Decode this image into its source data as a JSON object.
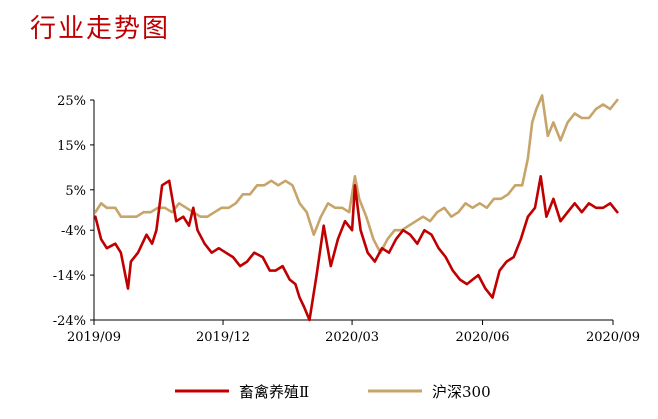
{
  "chart_data": {
    "type": "line",
    "title": "行业走势图",
    "ylim": [
      -24,
      25
    ],
    "y_ticks": [
      "25%",
      "15%",
      "5%",
      "-4%",
      "-14%",
      "-24%"
    ],
    "x_ticks": [
      "2019/09",
      "2019/12",
      "2020/03",
      "2020/06",
      "2020/09"
    ],
    "legend_position": "bottom",
    "series": [
      {
        "name": "畜禽养殖Ⅱ",
        "color": "#c00000",
        "x": [
          "2019-09-02",
          "2019-09-06",
          "2019-09-10",
          "2019-09-16",
          "2019-09-20",
          "2019-09-25",
          "2019-09-27",
          "2019-10-02",
          "2019-10-08",
          "2019-10-12",
          "2019-10-15",
          "2019-10-19",
          "2019-10-24",
          "2019-10-29",
          "2019-11-03",
          "2019-11-07",
          "2019-11-10",
          "2019-11-13",
          "2019-11-18",
          "2019-11-23",
          "2019-11-28",
          "2019-12-03",
          "2019-12-08",
          "2019-12-13",
          "2019-12-18",
          "2019-12-23",
          "2019-12-29",
          "2020-01-03",
          "2020-01-07",
          "2020-01-12",
          "2020-01-17",
          "2020-01-21",
          "2020-01-24",
          "2020-01-27",
          "2020-01-31",
          "2020-02-05",
          "2020-02-10",
          "2020-02-15",
          "2020-02-20",
          "2020-02-25",
          "2020-03-01",
          "2020-03-03",
          "2020-03-07",
          "2020-03-12",
          "2020-03-17",
          "2020-03-22",
          "2020-03-27",
          "2020-04-01",
          "2020-04-06",
          "2020-04-11",
          "2020-04-16",
          "2020-04-21",
          "2020-04-26",
          "2020-05-01",
          "2020-05-06",
          "2020-05-11",
          "2020-05-16",
          "2020-05-21",
          "2020-05-25",
          "2020-05-29",
          "2020-06-03",
          "2020-06-08",
          "2020-06-13",
          "2020-06-18",
          "2020-06-23",
          "2020-06-28",
          "2020-07-03",
          "2020-07-08",
          "2020-07-12",
          "2020-07-16",
          "2020-07-21",
          "2020-07-26",
          "2020-07-31",
          "2020-08-05",
          "2020-08-10",
          "2020-08-15",
          "2020-08-20",
          "2020-08-25",
          "2020-08-30",
          "2020-09-04"
        ],
        "values": [
          -1,
          -6,
          -8,
          -7,
          -9,
          -17,
          -11,
          -9,
          -5,
          -7,
          -4,
          6,
          7,
          -2,
          -1,
          -3,
          1,
          -4,
          -7,
          -9,
          -8,
          -9,
          -10,
          -12,
          -11,
          -9,
          -10,
          -13,
          -13,
          -12,
          -15,
          -16,
          -19,
          -21,
          -24,
          -14,
          -3,
          -12,
          -6,
          -2,
          -4,
          6,
          -4,
          -9,
          -11,
          -8,
          -9,
          -6,
          -4,
          -5,
          -7,
          -4,
          -5,
          -8,
          -10,
          -13,
          -15,
          -16,
          -15,
          -14,
          -17,
          -19,
          -13,
          -11,
          -10,
          -6,
          -1,
          1,
          8,
          -1,
          3,
          -2,
          0,
          2,
          0,
          2,
          1,
          1,
          2,
          0
        ]
      },
      {
        "name": "沪深300",
        "color": "#c6a46a",
        "x": [
          "2019-09-02",
          "2019-09-06",
          "2019-09-10",
          "2019-09-16",
          "2019-09-20",
          "2019-09-25",
          "2019-10-01",
          "2019-10-06",
          "2019-10-11",
          "2019-10-16",
          "2019-10-21",
          "2019-10-26",
          "2019-10-31",
          "2019-11-05",
          "2019-11-10",
          "2019-11-15",
          "2019-11-20",
          "2019-11-25",
          "2019-11-30",
          "2019-12-05",
          "2019-12-10",
          "2019-12-15",
          "2019-12-20",
          "2019-12-25",
          "2019-12-30",
          "2020-01-04",
          "2020-01-09",
          "2020-01-14",
          "2020-01-19",
          "2020-01-24",
          "2020-01-29",
          "2020-02-03",
          "2020-02-08",
          "2020-02-13",
          "2020-02-18",
          "2020-02-23",
          "2020-02-28",
          "2020-03-03",
          "2020-03-06",
          "2020-03-11",
          "2020-03-16",
          "2020-03-21",
          "2020-03-26",
          "2020-03-31",
          "2020-04-05",
          "2020-04-10",
          "2020-04-15",
          "2020-04-20",
          "2020-04-25",
          "2020-04-30",
          "2020-05-05",
          "2020-05-10",
          "2020-05-15",
          "2020-05-20",
          "2020-05-25",
          "2020-05-30",
          "2020-06-04",
          "2020-06-09",
          "2020-06-14",
          "2020-06-19",
          "2020-06-24",
          "2020-06-29",
          "2020-07-03",
          "2020-07-06",
          "2020-07-09",
          "2020-07-13",
          "2020-07-17",
          "2020-07-21",
          "2020-07-26",
          "2020-07-31",
          "2020-08-05",
          "2020-08-10",
          "2020-08-15",
          "2020-08-20",
          "2020-08-25",
          "2020-08-30",
          "2020-09-04"
        ],
        "values": [
          0,
          2,
          1,
          1,
          -1,
          -1,
          -1,
          0,
          0,
          1,
          1,
          0,
          2,
          1,
          0,
          -1,
          -1,
          0,
          1,
          1,
          2,
          4,
          4,
          6,
          6,
          7,
          6,
          7,
          6,
          2,
          0,
          -5,
          -1,
          2,
          1,
          1,
          0,
          8,
          3,
          -1,
          -6,
          -9,
          -6,
          -4,
          -4,
          -3,
          -2,
          -1,
          -2,
          0,
          1,
          -1,
          0,
          2,
          1,
          2,
          1,
          3,
          3,
          4,
          6,
          6,
          12,
          20,
          23,
          26,
          17,
          20,
          16,
          20,
          22,
          21,
          21,
          23,
          24,
          23,
          25
        ]
      }
    ]
  }
}
